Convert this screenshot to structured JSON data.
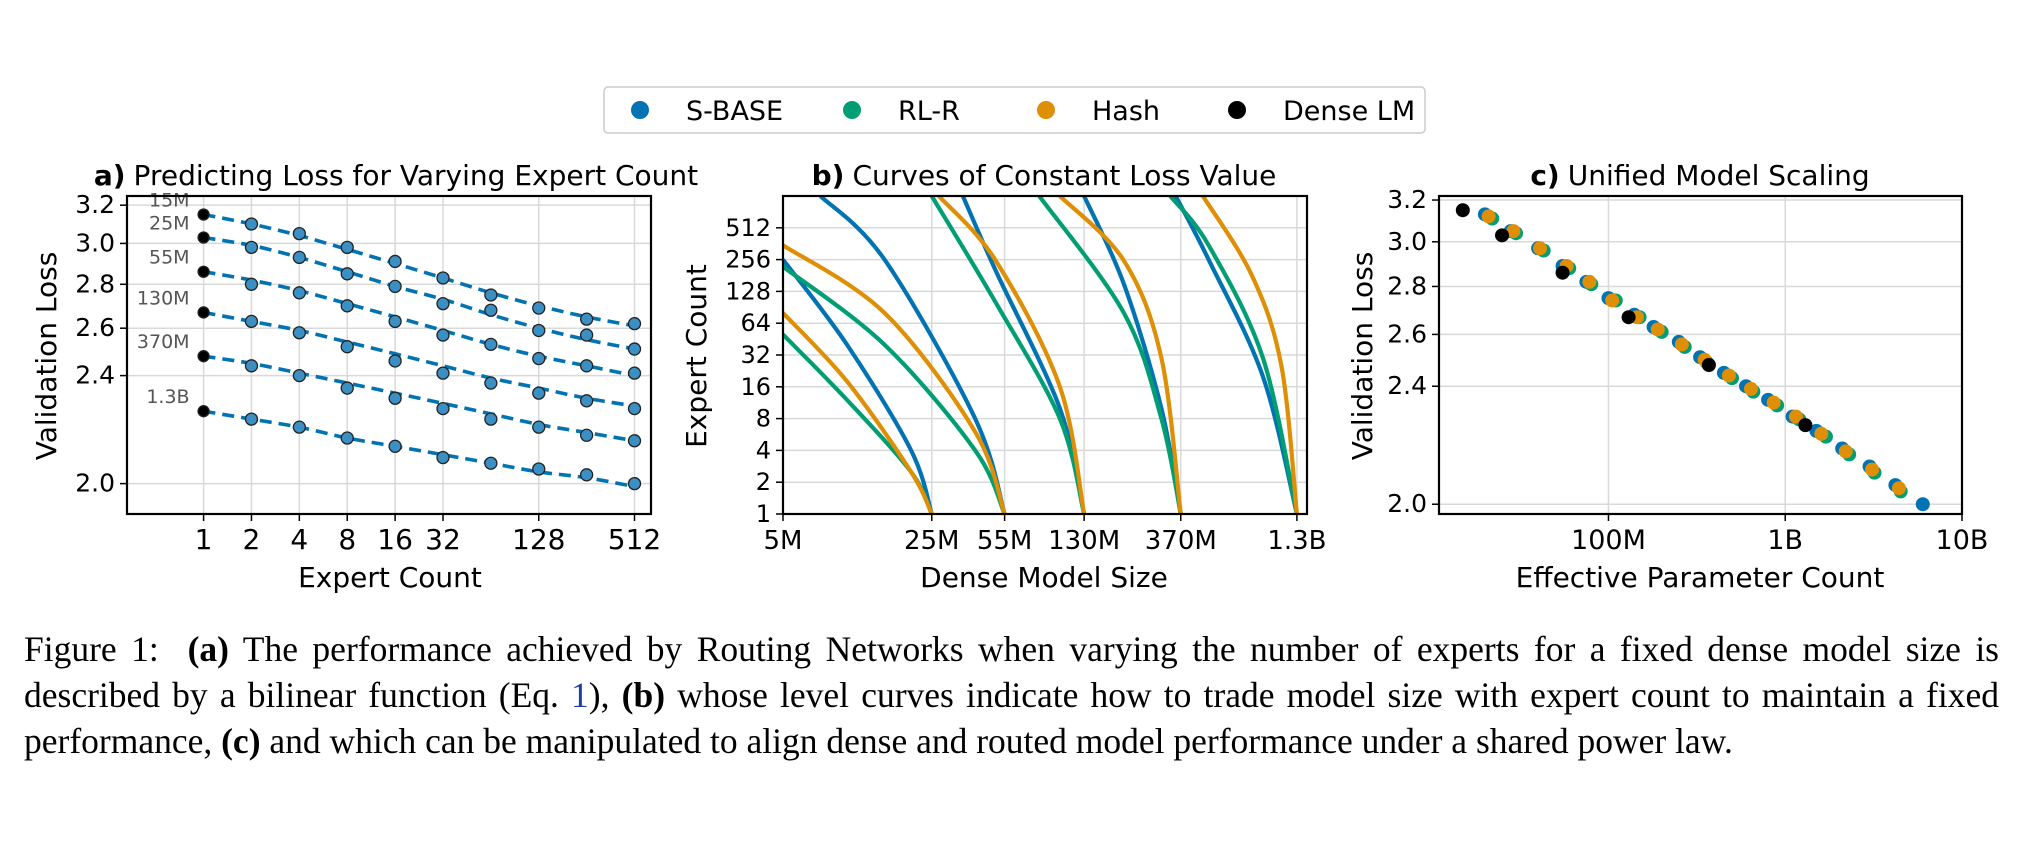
{
  "legend": [
    {
      "label": "S-BASE",
      "color": "#0173b2"
    },
    {
      "label": "RL-R",
      "color": "#029e73"
    },
    {
      "label": "Hash",
      "color": "#de8f05"
    },
    {
      "label": "Dense LM",
      "color": "#000000"
    }
  ],
  "panels": {
    "a": {
      "letter": "a)",
      "title": "Predicting Loss for Varying Expert Count",
      "xlabel": "Expert Count",
      "ylabel": "Validation Loss"
    },
    "b": {
      "letter": "b)",
      "title": "Curves of Constant Loss Value",
      "xlabel": "Dense Model Size",
      "ylabel": "Expert Count"
    },
    "c": {
      "letter": "c)",
      "title": "Unified Model Scaling",
      "xlabel": "Effective Parameter Count",
      "ylabel": "Validation Loss"
    }
  },
  "caption": {
    "figure_label": "Figure 1:",
    "a_tag": "(a)",
    "a_text": " The performance achieved by Routing Networks when varying the number of experts for a fixed dense model size is described by a bilinear function (Eq. ",
    "eq_ref": "1",
    "a_text_end": "), ",
    "b_tag": "(b)",
    "b_text": " whose level curves indicate how to trade model size with expert count to maintain a fixed performance, ",
    "c_tag": "(c)",
    "c_text": " and which can be manipulated to align dense and routed model performance under a shared power law."
  },
  "chart_data": [
    {
      "type": "scatter",
      "panel": "a",
      "title": "Predicting Loss for Varying Expert Count",
      "xlabel": "Expert Count",
      "ylabel": "Validation Loss",
      "xscale": "log2",
      "yscale": "log",
      "xlim": [
        0.33,
        650
      ],
      "ylim": [
        1.9,
        3.25
      ],
      "xticks": [
        1,
        2,
        4,
        8,
        16,
        32,
        128,
        512
      ],
      "xtick_labels": [
        "1",
        "2",
        "4",
        "8",
        "16",
        "32",
        "128",
        "512"
      ],
      "yticks": [
        2.0,
        2.4,
        2.6,
        2.8,
        3.0,
        3.2
      ],
      "ytick_labels": [
        "2.0",
        "2.4",
        "2.6",
        "2.8",
        "3.0",
        "3.2"
      ],
      "grid": true,
      "series": [
        {
          "name": "15M",
          "x": [
            1,
            2,
            4,
            8,
            16,
            32,
            64,
            128,
            256,
            512
          ],
          "y": [
            3.15,
            3.1,
            3.05,
            2.98,
            2.91,
            2.83,
            2.75,
            2.69,
            2.64,
            2.62
          ],
          "fit": [
            3.15,
            3.1,
            3.04,
            2.97,
            2.9,
            2.83,
            2.76,
            2.7,
            2.65,
            2.61
          ]
        },
        {
          "name": "25M",
          "x": [
            1,
            2,
            4,
            8,
            16,
            32,
            64,
            128,
            256,
            512
          ],
          "y": [
            3.03,
            2.98,
            2.93,
            2.85,
            2.79,
            2.71,
            2.68,
            2.59,
            2.57,
            2.51
          ],
          "fit": [
            3.03,
            2.99,
            2.93,
            2.86,
            2.79,
            2.73,
            2.66,
            2.6,
            2.55,
            2.51
          ]
        },
        {
          "name": "55M",
          "x": [
            1,
            2,
            4,
            8,
            16,
            32,
            64,
            128,
            256,
            512
          ],
          "y": [
            2.86,
            2.8,
            2.76,
            2.7,
            2.63,
            2.57,
            2.53,
            2.47,
            2.44,
            2.41
          ],
          "fit": [
            2.86,
            2.82,
            2.77,
            2.71,
            2.65,
            2.59,
            2.53,
            2.48,
            2.44,
            2.4
          ]
        },
        {
          "name": "130M",
          "x": [
            1,
            2,
            4,
            8,
            16,
            32,
            64,
            128,
            256,
            512
          ],
          "y": [
            2.67,
            2.63,
            2.58,
            2.52,
            2.46,
            2.41,
            2.37,
            2.33,
            2.3,
            2.27
          ],
          "fit": [
            2.67,
            2.63,
            2.59,
            2.54,
            2.49,
            2.44,
            2.39,
            2.35,
            2.31,
            2.28
          ]
        },
        {
          "name": "370M",
          "x": [
            1,
            2,
            4,
            8,
            16,
            32,
            64,
            128,
            256,
            512
          ],
          "y": [
            2.48,
            2.44,
            2.4,
            2.35,
            2.31,
            2.27,
            2.23,
            2.2,
            2.17,
            2.15
          ],
          "fit": [
            2.48,
            2.45,
            2.41,
            2.37,
            2.33,
            2.29,
            2.25,
            2.21,
            2.18,
            2.15
          ]
        },
        {
          "name": "1.3B",
          "x": [
            1,
            2,
            4,
            8,
            16,
            32,
            64,
            128,
            256,
            512
          ],
          "y": [
            2.26,
            2.23,
            2.2,
            2.16,
            2.13,
            2.09,
            2.07,
            2.05,
            2.03,
            2.0
          ],
          "fit": [
            2.26,
            2.23,
            2.2,
            2.16,
            2.13,
            2.1,
            2.07,
            2.04,
            2.02,
            1.99
          ]
        }
      ]
    },
    {
      "type": "line",
      "panel": "b",
      "title": "Curves of Constant Loss Value",
      "xlabel": "Dense Model Size",
      "ylabel": "Expert Count",
      "xscale": "log",
      "yscale": "log2",
      "xlim": [
        5000000.0,
        1450000000.0
      ],
      "ylim": [
        1,
        1024
      ],
      "xticks": [
        5000000.0,
        25000000.0,
        55000000.0,
        130000000.0,
        370000000.0,
        1300000000.0
      ],
      "xtick_labels": [
        "5M",
        "25M",
        "55M",
        "130M",
        "370M",
        "1.3B"
      ],
      "yticks": [
        1,
        2,
        4,
        8,
        16,
        32,
        64,
        128,
        256,
        512
      ],
      "ytick_labels": [
        "1",
        "2",
        "4",
        "8",
        "16",
        "32",
        "64",
        "128",
        "256",
        "512"
      ],
      "grid": true,
      "series": [
        {
          "name": "S-BASE",
          "curves": [
            {
              "x": [
                5000000.0,
                10000000.0,
                20000000.0,
                25000000.0
              ],
              "y": [
                256,
                40,
                4,
                1
              ]
            },
            {
              "x": [
                7500000.0,
                15000000.0,
                40000000.0,
                55000000.0
              ],
              "y": [
                1024,
                256,
                8,
                1
              ]
            },
            {
              "x": [
                35000000.0,
                50000000.0,
                100000000.0,
                130000000.0
              ],
              "y": [
                1024,
                200,
                10,
                1
              ]
            },
            {
              "x": [
                130000000.0,
                200000000.0,
                300000000.0,
                370000000.0
              ],
              "y": [
                1024,
                150,
                10,
                1
              ]
            },
            {
              "x": [
                350000000.0,
                500000000.0,
                900000000.0,
                1300000000.0
              ],
              "y": [
                1024,
                256,
                20,
                1
              ]
            }
          ]
        },
        {
          "name": "RL-R",
          "curves": [
            {
              "x": [
                5000000.0,
                10000000.0,
                20000000.0,
                25000000.0
              ],
              "y": [
                50,
                12,
                2.5,
                1
              ]
            },
            {
              "x": [
                5000000.0,
                15000000.0,
                40000000.0,
                55000000.0
              ],
              "y": [
                220,
                40,
                4,
                1
              ]
            },
            {
              "x": [
                25000000.0,
                50000000.0,
                100000000.0,
                130000000.0
              ],
              "y": [
                1024,
                100,
                8,
                1
              ]
            },
            {
              "x": [
                80000000.0,
                200000000.0,
                300000000.0,
                370000000.0
              ],
              "y": [
                1024,
                80,
                8,
                1
              ]
            },
            {
              "x": [
                330000000.0,
                500000000.0,
                900000000.0,
                1300000000.0
              ],
              "y": [
                1024,
                350,
                30,
                1
              ]
            }
          ]
        },
        {
          "name": "Hash",
          "curves": [
            {
              "x": [
                5000000.0,
                10000000.0,
                20000000.0,
                25000000.0
              ],
              "y": [
                80,
                18,
                2.5,
                1
              ]
            },
            {
              "x": [
                5000000.0,
                15000000.0,
                40000000.0,
                55000000.0
              ],
              "y": [
                350,
                80,
                6,
                1
              ]
            },
            {
              "x": [
                27000000.0,
                50000000.0,
                100000000.0,
                130000000.0
              ],
              "y": [
                1024,
                250,
                16,
                1
              ]
            },
            {
              "x": [
                100000000.0,
                200000000.0,
                300000000.0,
                370000000.0
              ],
              "y": [
                1024,
                250,
                30,
                1
              ]
            },
            {
              "x": [
                470000000.0,
                800000000.0,
                1100000000.0,
                1300000000.0
              ],
              "y": [
                1024,
                180,
                25,
                1
              ]
            }
          ]
        }
      ]
    },
    {
      "type": "scatter",
      "panel": "c",
      "title": "Unified Model Scaling",
      "xlabel": "Effective Parameter Count",
      "ylabel": "Validation Loss",
      "xscale": "log",
      "yscale": "log",
      "xlim": [
        11000000.0,
        10000000000.0
      ],
      "ylim": [
        1.97,
        3.22
      ],
      "xticks": [
        100000000.0,
        1000000000.0,
        10000000000.0
      ],
      "xtick_labels": [
        "100M",
        "1B",
        "10B"
      ],
      "yticks": [
        2.0,
        2.4,
        2.6,
        2.8,
        3.0,
        3.2
      ],
      "ytick_labels": [
        "2.0",
        "2.4",
        "2.6",
        "2.8",
        "3.0",
        "3.2"
      ],
      "grid": true,
      "series": [
        {
          "name": "S-BASE",
          "x": [
            20000000.0,
            28000000.0,
            40000000.0,
            55000000.0,
            75000000.0,
            100000000.0,
            140000000.0,
            180000000.0,
            250000000.0,
            330000000.0,
            450000000.0,
            600000000.0,
            800000000.0,
            1100000000.0,
            1500000000.0,
            2100000000.0,
            3000000000.0,
            4200000000.0,
            6000000000.0
          ],
          "y": [
            3.13,
            3.05,
            2.97,
            2.89,
            2.82,
            2.75,
            2.68,
            2.63,
            2.57,
            2.51,
            2.45,
            2.4,
            2.35,
            2.29,
            2.24,
            2.18,
            2.12,
            2.06,
            2.0
          ]
        },
        {
          "name": "RL-R",
          "x": [
            22000000.0,
            30000000.0,
            43000000.0,
            60000000.0,
            80000000.0,
            110000000.0,
            150000000.0,
            200000000.0,
            270000000.0,
            360000000.0,
            500000000.0,
            660000000.0,
            900000000.0,
            1200000000.0,
            1700000000.0,
            2300000000.0,
            3200000000.0,
            4500000000.0
          ],
          "y": [
            3.11,
            3.04,
            2.96,
            2.88,
            2.81,
            2.74,
            2.67,
            2.61,
            2.55,
            2.49,
            2.43,
            2.38,
            2.33,
            2.28,
            2.22,
            2.16,
            2.1,
            2.04
          ]
        },
        {
          "name": "Hash",
          "x": [
            21000000.0,
            29000000.0,
            41000000.0,
            58000000.0,
            78000000.0,
            105000000.0,
            145000000.0,
            190000000.0,
            260000000.0,
            350000000.0,
            480000000.0,
            640000000.0,
            860000000.0,
            1150000000.0,
            1600000000.0,
            2200000000.0,
            3100000000.0,
            4400000000.0
          ],
          "y": [
            3.12,
            3.05,
            2.97,
            2.89,
            2.82,
            2.74,
            2.67,
            2.62,
            2.56,
            2.5,
            2.44,
            2.39,
            2.34,
            2.29,
            2.23,
            2.17,
            2.11,
            2.05
          ]
        },
        {
          "name": "Dense LM",
          "x": [
            15000000.0,
            25000000.0,
            55000000.0,
            130000000.0,
            370000000.0,
            1300000000.0
          ],
          "y": [
            3.15,
            3.03,
            2.86,
            2.67,
            2.48,
            2.26
          ]
        }
      ]
    }
  ]
}
